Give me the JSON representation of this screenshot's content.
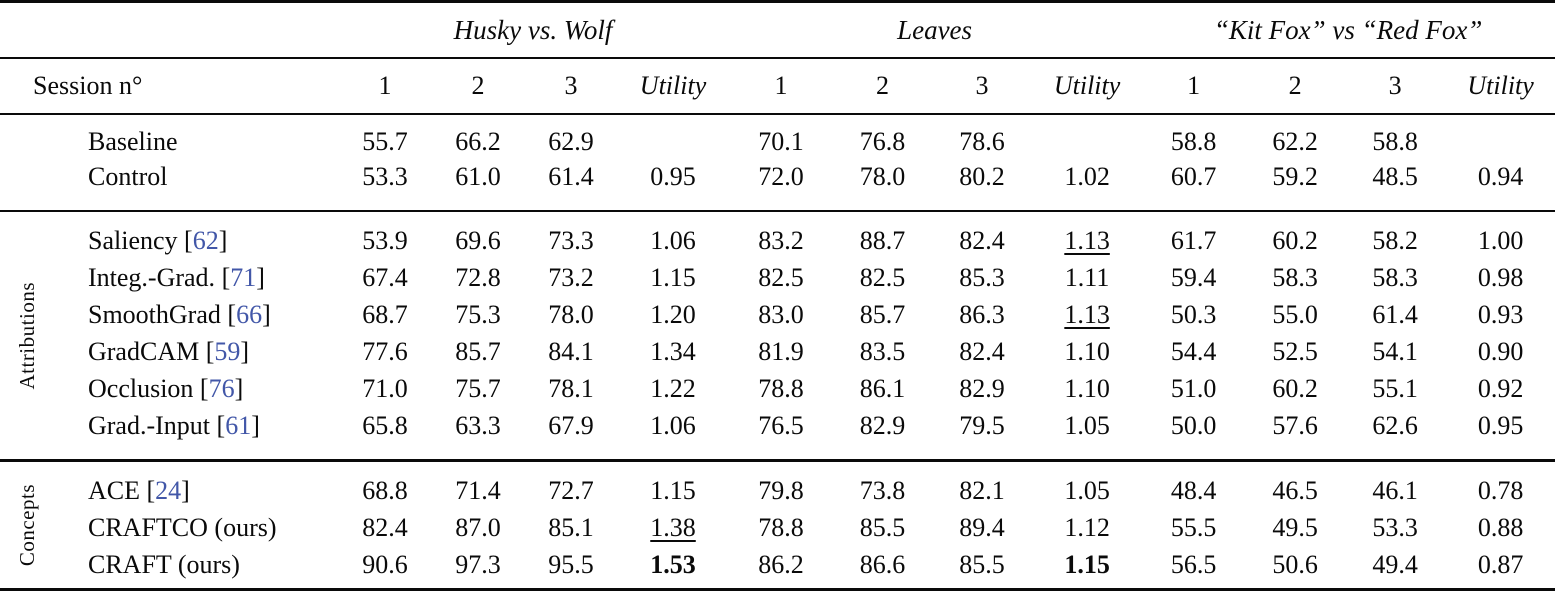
{
  "colors": {
    "citation_blue": "#4257a8",
    "text": "#0a0a0a",
    "background": "#ffffff"
  },
  "table": {
    "session_label": "Session n°",
    "subcols": [
      "1",
      "2",
      "3",
      "Utility"
    ],
    "groups": [
      "Husky vs. Wolf",
      "Leaves",
      "“Kit Fox” vs “Red Fox”"
    ],
    "sections": [
      {
        "side_label": "",
        "rows": [
          {
            "label": "Baseline",
            "cells": [
              "55.7",
              "66.2",
              "62.9",
              "",
              "70.1",
              "76.8",
              "78.6",
              "",
              "58.8",
              "62.2",
              "58.8",
              ""
            ]
          },
          {
            "label": "Control",
            "cells": [
              "53.3",
              "61.0",
              "61.4",
              "0.95",
              "72.0",
              "78.0",
              "80.2",
              "1.02",
              "60.7",
              "59.2",
              "48.5",
              "0.94"
            ]
          }
        ]
      },
      {
        "side_label": "Attributions",
        "rows": [
          {
            "label": "Saliency",
            "cite": "62",
            "cells": [
              "53.9",
              "69.6",
              "73.3",
              "1.06",
              "83.2",
              "88.7",
              "82.4",
              {
                "t": "1.13",
                "em": "u"
              },
              "61.7",
              "60.2",
              "58.2",
              "1.00"
            ]
          },
          {
            "label": "Integ.-Grad.",
            "cite": "71",
            "cells": [
              "67.4",
              "72.8",
              "73.2",
              "1.15",
              "82.5",
              "82.5",
              "85.3",
              "1.11",
              "59.4",
              "58.3",
              "58.3",
              "0.98"
            ]
          },
          {
            "label": "SmoothGrad",
            "cite": "66",
            "cells": [
              "68.7",
              "75.3",
              "78.0",
              "1.20",
              "83.0",
              "85.7",
              "86.3",
              {
                "t": "1.13",
                "em": "u"
              },
              "50.3",
              "55.0",
              "61.4",
              "0.93"
            ]
          },
          {
            "label": "GradCAM",
            "cite": "59",
            "cells": [
              "77.6",
              "85.7",
              "84.1",
              "1.34",
              "81.9",
              "83.5",
              "82.4",
              "1.10",
              "54.4",
              "52.5",
              "54.1",
              "0.90"
            ]
          },
          {
            "label": "Occlusion",
            "cite": "76",
            "cells": [
              "71.0",
              "75.7",
              "78.1",
              "1.22",
              "78.8",
              "86.1",
              "82.9",
              "1.10",
              "51.0",
              "60.2",
              "55.1",
              "0.92"
            ]
          },
          {
            "label": "Grad.-Input",
            "cite": "61",
            "cells": [
              "65.8",
              "63.3",
              "67.9",
              "1.06",
              "76.5",
              "82.9",
              "79.5",
              "1.05",
              "50.0",
              "57.6",
              "62.6",
              "0.95"
            ]
          }
        ]
      },
      {
        "side_label": "Concepts",
        "rows": [
          {
            "label": "ACE",
            "cite": "24",
            "cells": [
              "68.8",
              "71.4",
              "72.7",
              "1.15",
              "79.8",
              "73.8",
              "82.1",
              "1.05",
              "48.4",
              "46.5",
              "46.1",
              "0.78"
            ]
          },
          {
            "label": "CRAFTCO (ours)",
            "cells": [
              "82.4",
              "87.0",
              "85.1",
              {
                "t": "1.38",
                "em": "u"
              },
              "78.8",
              "85.5",
              "89.4",
              "1.12",
              "55.5",
              "49.5",
              "53.3",
              "0.88"
            ]
          },
          {
            "label": "CRAFT (ours)",
            "cells": [
              "90.6",
              "97.3",
              "95.5",
              {
                "t": "1.53",
                "em": "b"
              },
              "86.2",
              "86.6",
              "85.5",
              {
                "t": "1.15",
                "em": "b"
              },
              "56.5",
              "50.6",
              "49.4",
              "0.87"
            ]
          }
        ]
      }
    ]
  }
}
